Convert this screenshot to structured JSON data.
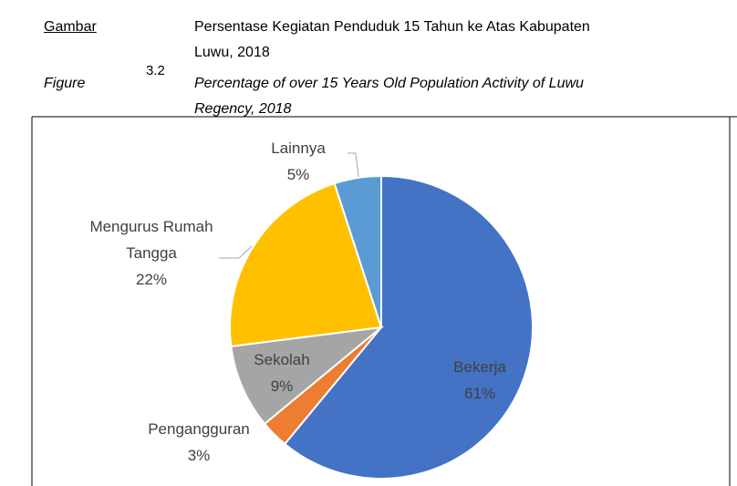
{
  "chart_data": {
    "type": "pie",
    "caption_label": "Gambar",
    "caption_label_en": "Figure",
    "figure_number": "3.2",
    "title": [
      "Persentase Kegiatan Penduduk 15 Tahun ke Atas Kabupaten",
      "Luwu, 2018"
    ],
    "subtitle": [
      "Percentage of over 15 Years Old Population Activity of Luwu",
      "Regency, 2018"
    ],
    "categories": [
      "Bekerja",
      "Pengangguran",
      "Sekolah",
      "Mengurus Rumah Tangga",
      "Lainnya"
    ],
    "values": [
      61,
      3,
      9,
      22,
      5
    ],
    "value_labels": [
      "61%",
      "3%",
      "9%",
      "22%",
      "5%"
    ],
    "colors": [
      "#4472c4",
      "#ed7d31",
      "#a5a5a5",
      "#ffc000",
      "#5b9bd5"
    ]
  }
}
